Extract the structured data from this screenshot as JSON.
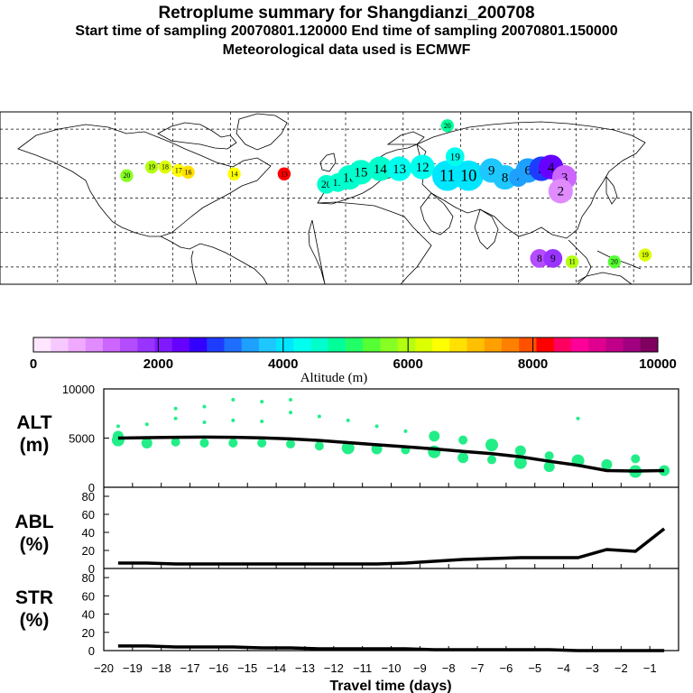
{
  "header": {
    "title": "Retroplume summary for Shangdianzi_200708",
    "sampling_line": "Start time of sampling 20070801.120000     End time of sampling 20070801.150000",
    "met_line": "Meteorological data used is ECMWF"
  },
  "colorbar": {
    "colors": [
      "#ffe6ff",
      "#f7c8ff",
      "#efaaff",
      "#e08cff",
      "#cc66ff",
      "#b44cff",
      "#9933ff",
      "#8019ff",
      "#6600ff",
      "#3300ff",
      "#1e3cff",
      "#1e6eff",
      "#1ea0ff",
      "#1ec8ff",
      "#00e6ff",
      "#00ffee",
      "#00ffcc",
      "#00ff99",
      "#22ff66",
      "#55ff33",
      "#88ff22",
      "#b4ff11",
      "#dcff00",
      "#ffff00",
      "#ffe000",
      "#ffc000",
      "#ffa000",
      "#ff8000",
      "#ff5000",
      "#ff0000",
      "#ff0060",
      "#ff0099",
      "#e00090",
      "#c00088",
      "#a00080",
      "#800060"
    ],
    "tick_labels": [
      "0",
      "2000",
      "4000",
      "6000",
      "8000",
      "10000"
    ],
    "label": "Altitude (m)"
  },
  "map_clusters": [
    {
      "label": "20",
      "lon": -114,
      "lat": 53,
      "alt": 5600,
      "size": 1
    },
    {
      "label": "19",
      "lon": -101,
      "lat": 58,
      "alt": 6100,
      "size": 1
    },
    {
      "label": "18",
      "lon": -94,
      "lat": 58,
      "alt": 6300,
      "size": 1
    },
    {
      "label": "17",
      "lon": -87,
      "lat": 56,
      "alt": 6500,
      "size": 1
    },
    {
      "label": "16",
      "lon": -82,
      "lat": 55,
      "alt": 6700,
      "size": 1
    },
    {
      "label": "14",
      "lon": -58,
      "lat": 54,
      "alt": 6400,
      "size": 1
    },
    {
      "label": "13",
      "lon": -32,
      "lat": 54,
      "alt": 8100,
      "size": 1
    },
    {
      "label": "20",
      "lon": -10,
      "lat": 48,
      "alt": 4600,
      "size": 2
    },
    {
      "label": "19",
      "lon": -4,
      "lat": 49,
      "alt": 4600,
      "size": 2
    },
    {
      "label": "18",
      "lon": 2,
      "lat": 52,
      "alt": 4700,
      "size": 3
    },
    {
      "label": "15",
      "lon": 8,
      "lat": 55,
      "alt": 4600,
      "size": 3
    },
    {
      "label": "14",
      "lon": 18,
      "lat": 57,
      "alt": 4500,
      "size": 3
    },
    {
      "label": "13",
      "lon": 28,
      "lat": 57,
      "alt": 4400,
      "size": 3
    },
    {
      "label": "12",
      "lon": 40,
      "lat": 58,
      "alt": 4300,
      "size": 3
    },
    {
      "label": "11",
      "lon": 53,
      "lat": 53,
      "alt": 4000,
      "size": 4
    },
    {
      "label": "10",
      "lon": 64,
      "lat": 53,
      "alt": 4000,
      "size": 4
    },
    {
      "label": "19",
      "lon": 57,
      "lat": 64,
      "alt": 4300,
      "size": 2
    },
    {
      "label": "20",
      "lon": 53,
      "lat": 82,
      "alt": 4800,
      "size": 1
    },
    {
      "label": "9",
      "lon": 76,
      "lat": 56,
      "alt": 3800,
      "size": 3
    },
    {
      "label": "8",
      "lon": 83,
      "lat": 52,
      "alt": 3800,
      "size": 3
    },
    {
      "label": "7",
      "lon": 90,
      "lat": 52,
      "alt": 3600,
      "size": 2
    },
    {
      "label": "6",
      "lon": 95,
      "lat": 56,
      "alt": 3500,
      "size": 3
    },
    {
      "label": "5",
      "lon": 102,
      "lat": 57,
      "alt": 2900,
      "size": 3
    },
    {
      "label": "4",
      "lon": 107,
      "lat": 58,
      "alt": 2400,
      "size": 3
    },
    {
      "label": "3",
      "lon": 114,
      "lat": 52,
      "alt": 1300,
      "size": 3
    },
    {
      "label": "2",
      "lon": 112,
      "lat": 44,
      "alt": 1000,
      "size": 3
    },
    {
      "label": "8",
      "lon": 101,
      "lat": 5,
      "alt": 1500,
      "size": 2
    },
    {
      "label": "9",
      "lon": 108,
      "lat": 5,
      "alt": 1800,
      "size": 2
    },
    {
      "label": "11",
      "lon": 118,
      "lat": 3,
      "alt": 6100,
      "size": 1
    },
    {
      "label": "20",
      "lon": 140,
      "lat": 3,
      "alt": 5500,
      "size": 1
    },
    {
      "label": "19",
      "lon": 156,
      "lat": 7,
      "alt": 6300,
      "size": 1
    }
  ],
  "chart_data": [
    {
      "type": "scatter",
      "title": "",
      "xlabel": "",
      "ylabel": "ALT (m)",
      "xlim": [
        -20,
        0
      ],
      "ylim": [
        0,
        10000
      ],
      "y_ticks": [
        "0",
        "5000",
        "10000"
      ],
      "series": [
        {
          "name": "ALT mean",
          "values": [
            [
              -19.5,
              5000
            ],
            [
              -18.5,
              5050
            ],
            [
              -17.5,
              5080
            ],
            [
              -16.5,
              5100
            ],
            [
              -15.5,
              5080
            ],
            [
              -14.5,
              5020
            ],
            [
              -13.5,
              4920
            ],
            [
              -12.5,
              4760
            ],
            [
              -11.5,
              4540
            ],
            [
              -10.5,
              4320
            ],
            [
              -9.5,
              4120
            ],
            [
              -8.5,
              3900
            ],
            [
              -7.5,
              3650
            ],
            [
              -6.5,
              3410
            ],
            [
              -5.5,
              3100
            ],
            [
              -4.5,
              2640
            ],
            [
              -3.5,
              2240
            ],
            [
              -2.5,
              1700
            ],
            [
              -1.5,
              1650
            ],
            [
              -0.5,
              1700
            ]
          ]
        },
        {
          "name": "ALT clusters",
          "values": [
            [
              -19.5,
              6200
            ],
            [
              -19.5,
              5200
            ],
            [
              -19.5,
              4800
            ],
            [
              -18.5,
              6400
            ],
            [
              -18.5,
              4500
            ],
            [
              -17.5,
              7000
            ],
            [
              -17.5,
              4600
            ],
            [
              -17.5,
              8000
            ],
            [
              -16.5,
              6600
            ],
            [
              -16.5,
              4500
            ],
            [
              -16.5,
              8200
            ],
            [
              -15.5,
              6800
            ],
            [
              -15.5,
              4500
            ],
            [
              -15.5,
              8900
            ],
            [
              -14.5,
              6700
            ],
            [
              -14.5,
              4500
            ],
            [
              -14.5,
              8700
            ],
            [
              -13.5,
              7600
            ],
            [
              -13.5,
              4400
            ],
            [
              -13.5,
              8900
            ],
            [
              -12.5,
              7200
            ],
            [
              -12.5,
              4200
            ],
            [
              -11.5,
              6800
            ],
            [
              -11.5,
              4000
            ],
            [
              -10.5,
              6200
            ],
            [
              -10.5,
              3900
            ],
            [
              -9.5,
              5700
            ],
            [
              -9.5,
              3800
            ],
            [
              -8.5,
              5200
            ],
            [
              -8.5,
              3600
            ],
            [
              -7.5,
              4800
            ],
            [
              -7.5,
              3000
            ],
            [
              -6.5,
              4300
            ],
            [
              -6.5,
              2800
            ],
            [
              -5.5,
              3700
            ],
            [
              -5.5,
              2500
            ],
            [
              -4.5,
              3200
            ],
            [
              -4.5,
              2100
            ],
            [
              -3.5,
              2700
            ],
            [
              -3.5,
              7000
            ],
            [
              -2.5,
              2300
            ],
            [
              -1.5,
              1600
            ],
            [
              -1.5,
              2900
            ],
            [
              -0.5,
              1700
            ]
          ]
        }
      ]
    },
    {
      "type": "line",
      "ylabel": "ABL (%)",
      "xlim": [
        -20,
        0
      ],
      "ylim": [
        0,
        90
      ],
      "y_ticks": [
        "0",
        "20",
        "40",
        "60",
        "80"
      ],
      "series": [
        {
          "name": "ABL",
          "values": [
            [
              -19.5,
              6
            ],
            [
              -18.5,
              6
            ],
            [
              -17.5,
              5
            ],
            [
              -16.5,
              5
            ],
            [
              -15.5,
              5
            ],
            [
              -14.5,
              5
            ],
            [
              -13.5,
              5
            ],
            [
              -12.5,
              5
            ],
            [
              -11.5,
              5
            ],
            [
              -10.5,
              5
            ],
            [
              -9.5,
              6
            ],
            [
              -8.5,
              8
            ],
            [
              -7.5,
              10
            ],
            [
              -6.5,
              11
            ],
            [
              -5.5,
              12
            ],
            [
              -4.5,
              12
            ],
            [
              -3.5,
              12
            ],
            [
              -2.5,
              21
            ],
            [
              -1.5,
              19
            ],
            [
              -0.5,
              44
            ]
          ]
        }
      ]
    },
    {
      "type": "line",
      "ylabel": "STR (%)",
      "xlabel": "Travel time (days)",
      "xlim": [
        -20,
        0
      ],
      "ylim": [
        0,
        90
      ],
      "y_ticks": [
        "0",
        "20",
        "40",
        "60",
        "80"
      ],
      "x_ticks": [
        "-20",
        "-19",
        "-18",
        "-17",
        "-16",
        "-15",
        "-14",
        "-13",
        "-12",
        "-11",
        "-10",
        "-9",
        "-8",
        "-7",
        "-6",
        "-5",
        "-4",
        "-3",
        "-2",
        "-1"
      ],
      "series": [
        {
          "name": "STR",
          "values": [
            [
              -19.5,
              5
            ],
            [
              -18.5,
              5
            ],
            [
              -17.5,
              4
            ],
            [
              -16.5,
              4
            ],
            [
              -15.5,
              4
            ],
            [
              -14.5,
              3
            ],
            [
              -13.5,
              3
            ],
            [
              -12.5,
              2
            ],
            [
              -11.5,
              2
            ],
            [
              -10.5,
              2
            ],
            [
              -9.5,
              2
            ],
            [
              -8.5,
              1
            ],
            [
              -7.5,
              1
            ],
            [
              -6.5,
              1
            ],
            [
              -5.5,
              1
            ],
            [
              -4.5,
              1
            ],
            [
              -3.5,
              0
            ],
            [
              -2.5,
              0
            ],
            [
              -1.5,
              0
            ],
            [
              -0.5,
              0
            ]
          ]
        }
      ]
    }
  ],
  "panels": {
    "alt_label_1": "ALT",
    "alt_label_2": "(m)",
    "abl_label_1": "ABL",
    "abl_label_2": "(%)",
    "str_label_1": "STR",
    "str_label_2": "(%)"
  }
}
